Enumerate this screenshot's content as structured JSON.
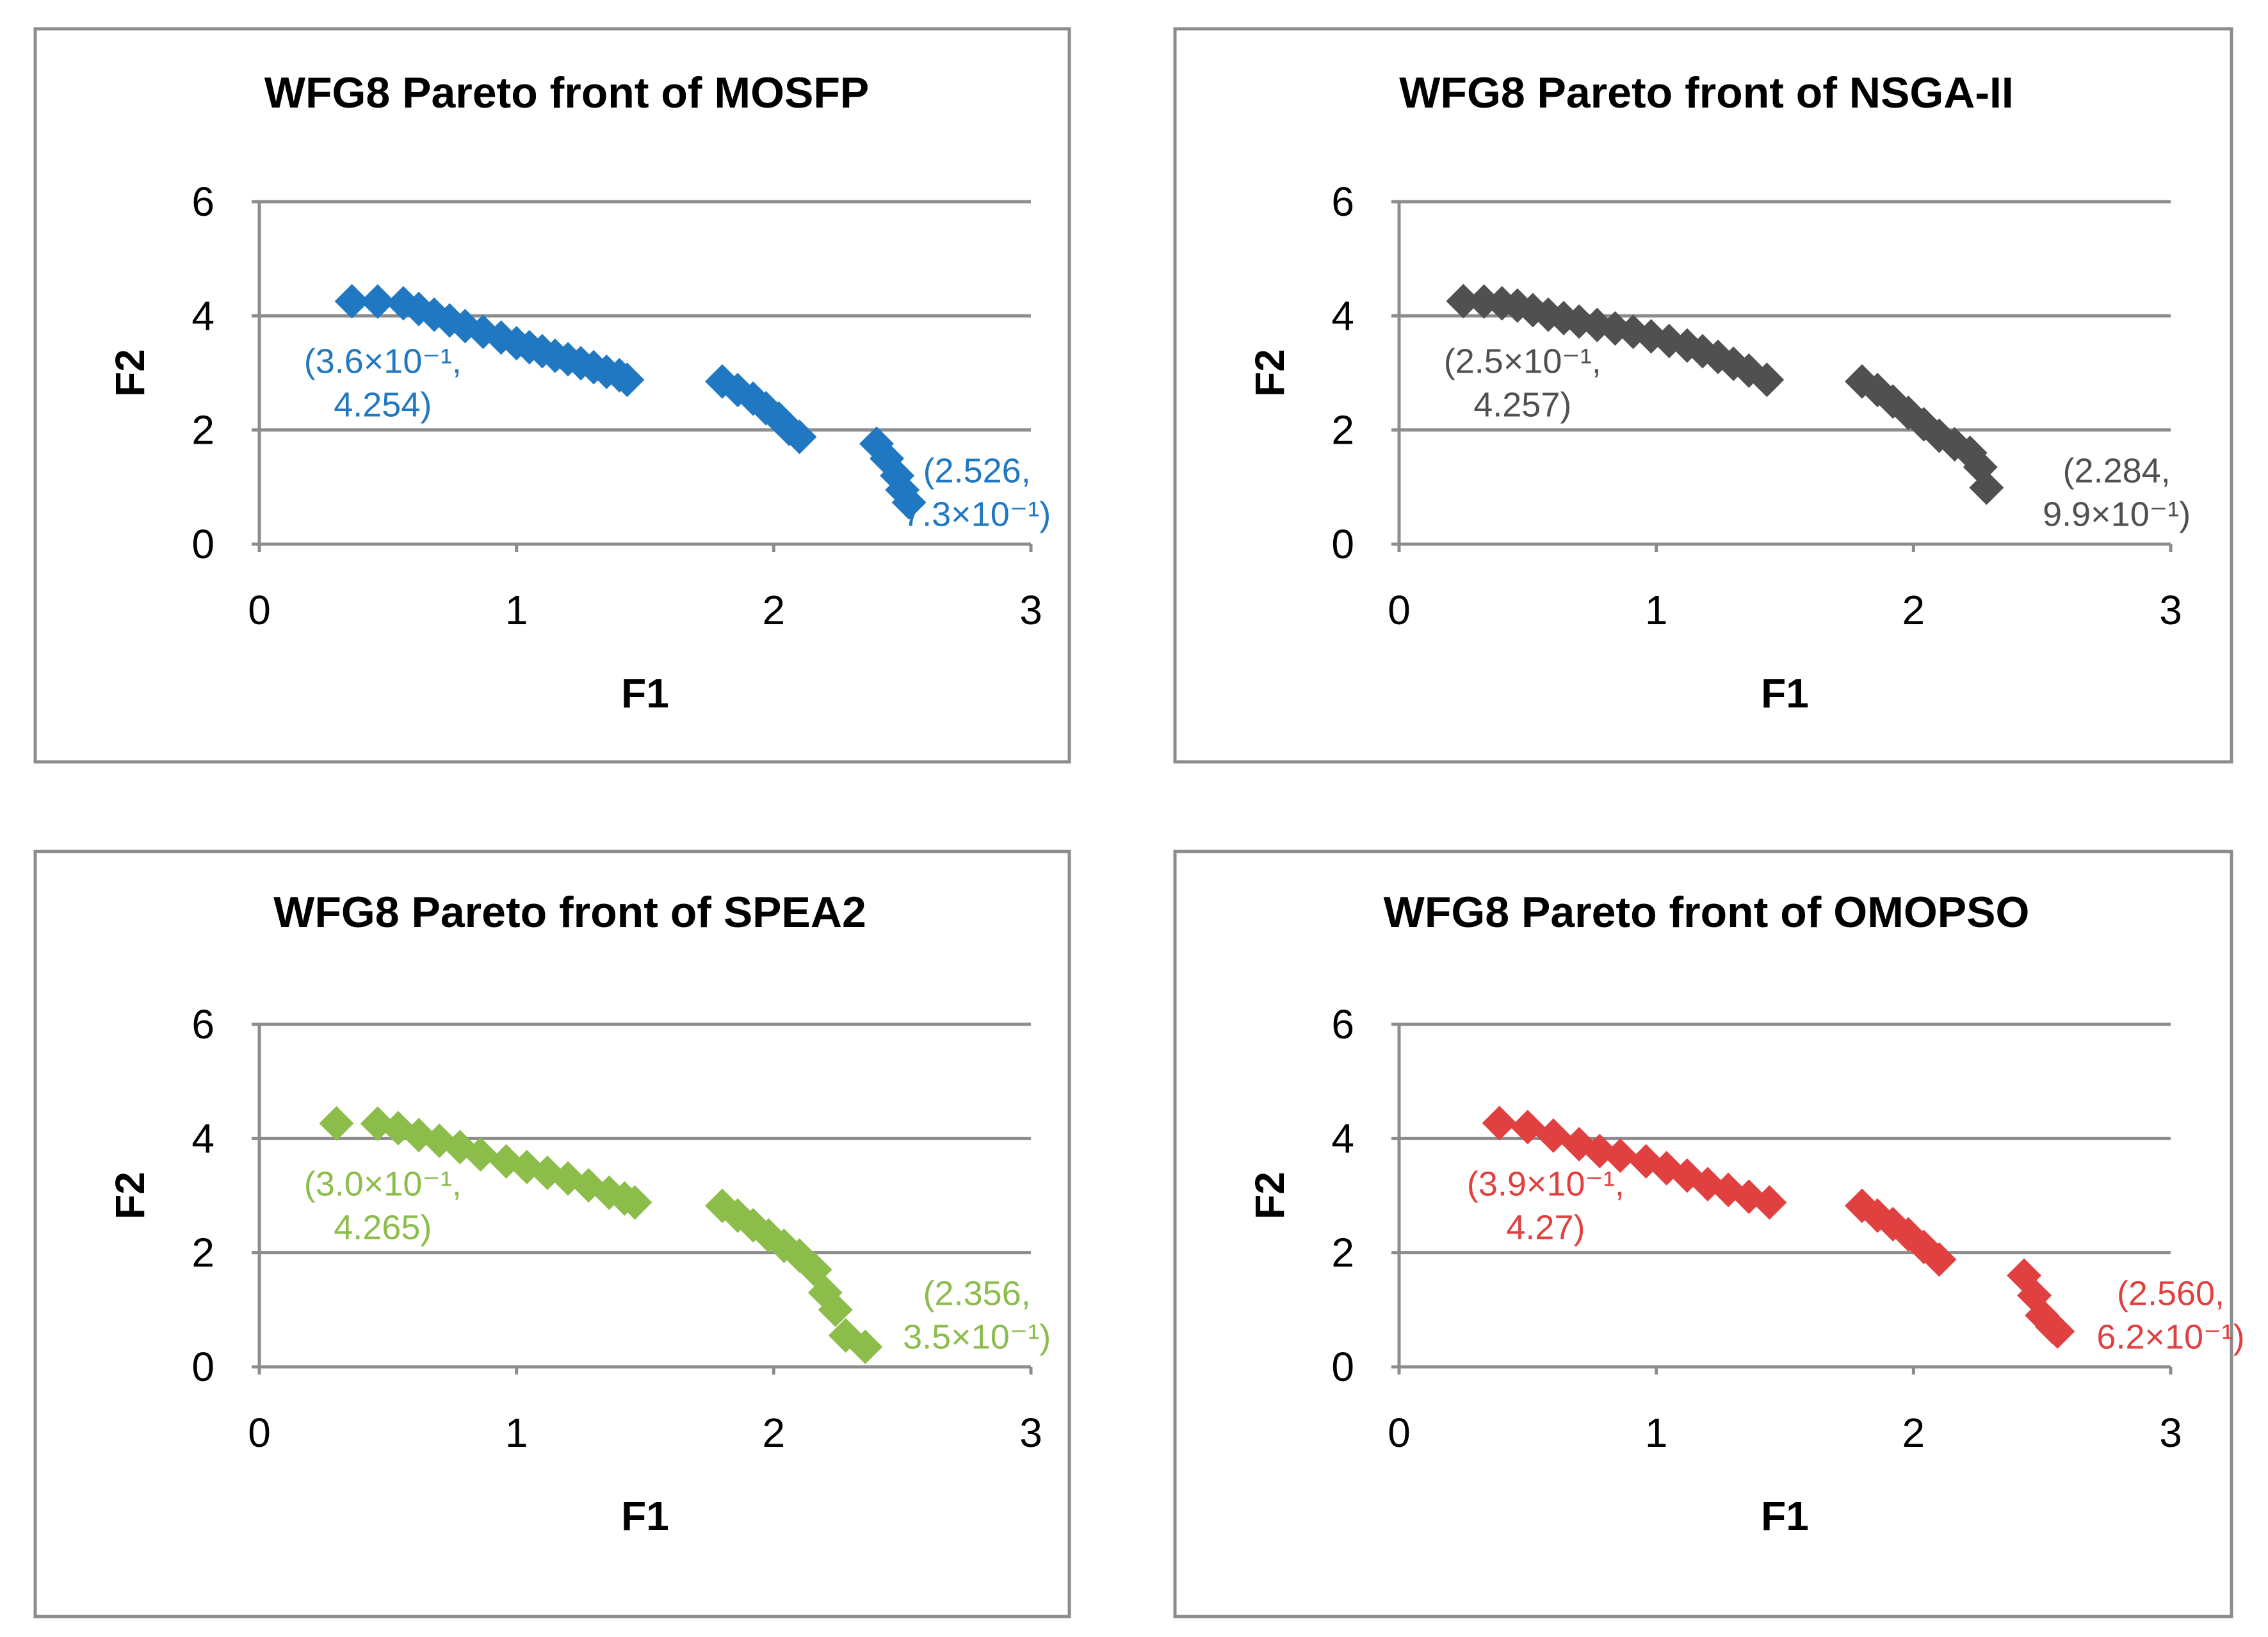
{
  "chart_data": [
    {
      "type": "scatter",
      "title": "WFG8 Pareto front of MOSFP",
      "xlabel": "F1",
      "ylabel": "F2",
      "xlim": [
        0,
        3
      ],
      "ylim": [
        0,
        6
      ],
      "xticks": [
        "0",
        "1",
        "2",
        "3"
      ],
      "yticks": [
        "0",
        "2",
        "4",
        "6"
      ],
      "grid": true,
      "color": "#1f78c1",
      "x": [
        0.36,
        0.46,
        0.56,
        0.62,
        0.68,
        0.74,
        0.8,
        0.87,
        0.94,
        1.0,
        1.05,
        1.1,
        1.15,
        1.2,
        1.25,
        1.3,
        1.35,
        1.4,
        1.43,
        1.8,
        1.86,
        1.92,
        1.97,
        2.02,
        2.06,
        2.1,
        2.4,
        2.44,
        2.48,
        2.5,
        2.526
      ],
      "y": [
        4.254,
        4.25,
        4.22,
        4.12,
        4.02,
        3.92,
        3.82,
        3.72,
        3.62,
        3.52,
        3.45,
        3.38,
        3.3,
        3.24,
        3.17,
        3.1,
        3.02,
        2.96,
        2.88,
        2.85,
        2.7,
        2.55,
        2.38,
        2.2,
        2.02,
        1.88,
        1.76,
        1.5,
        1.2,
        0.95,
        0.73
      ],
      "annotations": [
        {
          "line1": "(3.6×10⁻¹,",
          "line2": "4.254)"
        },
        {
          "line1": "(2.526,",
          "line2": "7.3×10⁻¹)"
        }
      ]
    },
    {
      "type": "scatter",
      "title": "WFG8 Pareto front of NSGA-II",
      "xlabel": "F1",
      "ylabel": "F2",
      "xlim": [
        0,
        3
      ],
      "ylim": [
        0,
        6
      ],
      "xticks": [
        "0",
        "1",
        "2",
        "3"
      ],
      "yticks": [
        "0",
        "2",
        "4",
        "6"
      ],
      "grid": true,
      "color": "#505050",
      "x": [
        0.25,
        0.33,
        0.4,
        0.46,
        0.52,
        0.58,
        0.64,
        0.7,
        0.77,
        0.84,
        0.91,
        0.98,
        1.05,
        1.12,
        1.18,
        1.24,
        1.3,
        1.36,
        1.43,
        1.8,
        1.86,
        1.92,
        1.98,
        2.04,
        2.1,
        2.16,
        2.22,
        2.26,
        2.284
      ],
      "y": [
        4.257,
        4.25,
        4.22,
        4.18,
        4.1,
        4.02,
        3.96,
        3.9,
        3.84,
        3.78,
        3.72,
        3.64,
        3.56,
        3.48,
        3.38,
        3.28,
        3.16,
        3.04,
        2.88,
        2.85,
        2.7,
        2.5,
        2.3,
        2.1,
        1.9,
        1.75,
        1.6,
        1.35,
        0.99
      ],
      "annotations": [
        {
          "line1": "(2.5×10⁻¹,",
          "line2": "4.257)"
        },
        {
          "line1": "(2.284,",
          "line2": "9.9×10⁻¹)"
        }
      ]
    },
    {
      "type": "scatter",
      "title": "WFG8 Pareto front of SPEA2",
      "xlabel": "F1",
      "ylabel": "F2",
      "xlim": [
        0,
        3
      ],
      "ylim": [
        0,
        6
      ],
      "xticks": [
        "0",
        "1",
        "2",
        "3"
      ],
      "yticks": [
        "0",
        "2",
        "4",
        "6"
      ],
      "grid": true,
      "color": "#8cbd4b",
      "x": [
        0.3,
        0.46,
        0.54,
        0.62,
        0.7,
        0.78,
        0.86,
        0.96,
        1.04,
        1.12,
        1.2,
        1.28,
        1.36,
        1.42,
        1.46,
        1.8,
        1.86,
        1.92,
        1.98,
        2.04,
        2.1,
        2.16,
        2.2,
        2.24,
        2.28,
        2.356
      ],
      "y": [
        4.265,
        4.26,
        4.18,
        4.06,
        3.96,
        3.85,
        3.72,
        3.6,
        3.5,
        3.4,
        3.3,
        3.18,
        3.05,
        2.95,
        2.88,
        2.82,
        2.65,
        2.48,
        2.3,
        2.12,
        1.95,
        1.7,
        1.3,
        1.0,
        0.55,
        0.35
      ],
      "annotations": [
        {
          "line1": "(3.0×10⁻¹,",
          "line2": "4.265)"
        },
        {
          "line1": "(2.356,",
          "line2": "3.5×10⁻¹)"
        }
      ]
    },
    {
      "type": "scatter",
      "title": "WFG8 Pareto front of OMOPSO",
      "xlabel": "F1",
      "ylabel": "F2",
      "xlim": [
        0,
        3
      ],
      "ylim": [
        0,
        6
      ],
      "xticks": [
        "0",
        "1",
        "2",
        "3"
      ],
      "yticks": [
        "0",
        "2",
        "4",
        "6"
      ],
      "grid": true,
      "color": "#e04040",
      "x": [
        0.39,
        0.5,
        0.6,
        0.7,
        0.78,
        0.86,
        0.96,
        1.04,
        1.12,
        1.2,
        1.28,
        1.36,
        1.44,
        1.8,
        1.86,
        1.92,
        1.98,
        2.04,
        2.1,
        2.43,
        2.47,
        2.5,
        2.54,
        2.56
      ],
      "y": [
        4.27,
        4.2,
        4.05,
        3.9,
        3.78,
        3.7,
        3.6,
        3.48,
        3.35,
        3.2,
        3.1,
        2.98,
        2.88,
        2.82,
        2.65,
        2.5,
        2.32,
        2.1,
        1.88,
        1.6,
        1.25,
        0.9,
        0.7,
        0.62
      ],
      "annotations": [
        {
          "line1": "(3.9×10⁻¹,",
          "line2": "4.27)"
        },
        {
          "line1": "(2.560,",
          "line2": "6.2×10⁻¹)"
        }
      ]
    }
  ]
}
